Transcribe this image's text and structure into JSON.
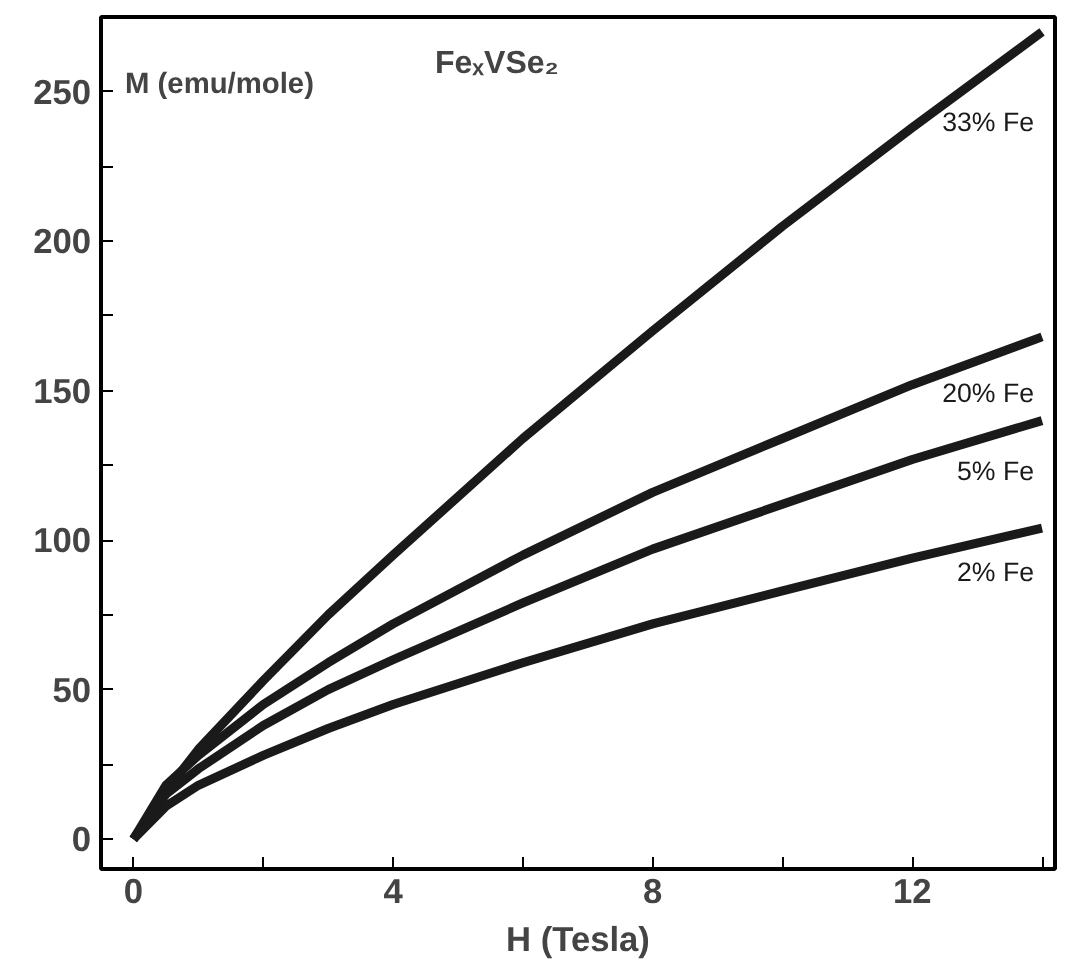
{
  "chart_data": {
    "type": "line",
    "title": "FeₓVSe₂",
    "xlabel": "H (Tesla)",
    "ylabel": "M (emu/mole)",
    "x": [
      0,
      0.5,
      1,
      2,
      3,
      4,
      6,
      8,
      10,
      12,
      14
    ],
    "series": [
      {
        "name": "33% Fe",
        "color": "#1a1a1a",
        "values": [
          0,
          16,
          30,
          53,
          75,
          95,
          134,
          170,
          205,
          238,
          270
        ]
      },
      {
        "name": "20% Fe",
        "color": "#1a1a1a",
        "values": [
          0,
          18,
          28,
          45,
          59,
          72,
          95,
          116,
          134,
          152,
          168
        ]
      },
      {
        "name": "5% Fe",
        "color": "#1a1a1a",
        "values": [
          0,
          15,
          23.5,
          38,
          50,
          60,
          79,
          97,
          112,
          127,
          140
        ]
      },
      {
        "name": "2% Fe",
        "color": "#1a1a1a",
        "values": [
          0,
          11,
          18,
          28,
          37,
          45,
          59,
          72,
          83,
          94,
          104
        ]
      }
    ],
    "xlim": [
      -0.5,
      14.2
    ],
    "ylim": [
      -10,
      275
    ],
    "xticks": [
      0,
      {
        "value": 2,
        "label": null
      },
      4,
      {
        "value": 6,
        "label": null
      },
      8,
      {
        "value": 10,
        "label": null
      },
      12,
      {
        "value": 14,
        "label": null
      }
    ],
    "yticks": [
      0,
      {
        "value": 25,
        "label": null
      },
      50,
      {
        "value": 75,
        "label": null
      },
      100,
      {
        "value": 125,
        "label": null
      },
      150,
      {
        "value": 175,
        "label": null
      },
      200,
      {
        "value": 225,
        "label": null
      },
      250
    ],
    "grid": false,
    "line_style": "solid",
    "marker": "none"
  }
}
